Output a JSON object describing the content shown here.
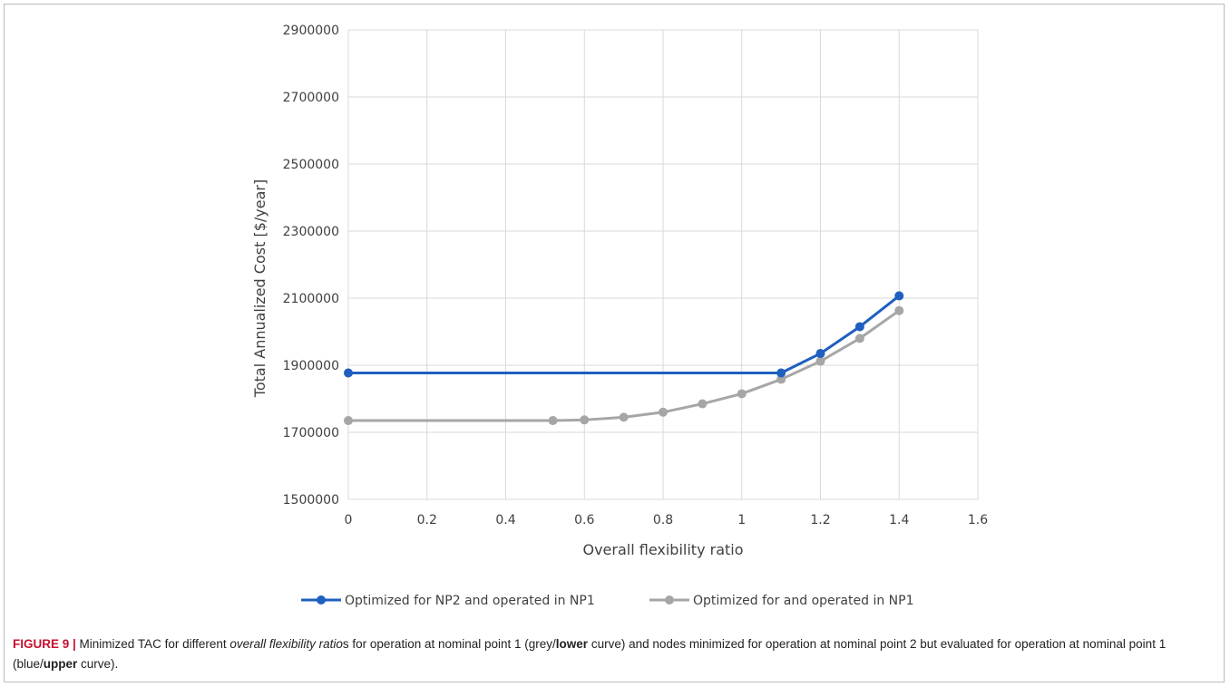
{
  "chart_data": {
    "type": "line",
    "xlabel": "Overall flexibility ratio",
    "ylabel": "Total Annualized Cost [$/year]",
    "xlim": [
      0,
      1.6
    ],
    "ylim": [
      1500000,
      2900000
    ],
    "xticks": [
      "0",
      "0.2",
      "0.4",
      "0.6",
      "0.8",
      "1",
      "1.2",
      "1.4",
      "1.6"
    ],
    "yticks": [
      "1500000",
      "1700000",
      "1900000",
      "2100000",
      "2300000",
      "2500000",
      "2700000",
      "2900000"
    ],
    "grid": "horizontal",
    "legend_position": "bottom",
    "series": [
      {
        "name": "Optimized for NP2 and operated in NP1",
        "color": "#1f5fbf",
        "x": [
          0,
          1.1,
          1.2,
          1.3,
          1.4
        ],
        "y": [
          1877000,
          1877000,
          1935000,
          2015000,
          2107000
        ]
      },
      {
        "name": "Optimized for and operated in NP1",
        "color": "#a6a6a6",
        "x": [
          0,
          0.52,
          0.6,
          0.7,
          0.8,
          0.9,
          1.0,
          1.1,
          1.2,
          1.3,
          1.4
        ],
        "y": [
          1735000,
          1735000,
          1737000,
          1745000,
          1760000,
          1785000,
          1815000,
          1858000,
          1912000,
          1980000,
          2063000
        ]
      }
    ]
  },
  "caption": {
    "label": "FIGURE 9 |",
    "p1": " Minimized TAC for different ",
    "em1": "overall flexibility ratio",
    "p2": "s for operation at nominal point 1 (grey/",
    "b1": "lower",
    "p3": " curve) and nodes minimized for operation at nominal point 2 but evaluated for operation at nominal point 1 (blue/",
    "b2": "upper",
    "p4": " curve)."
  }
}
